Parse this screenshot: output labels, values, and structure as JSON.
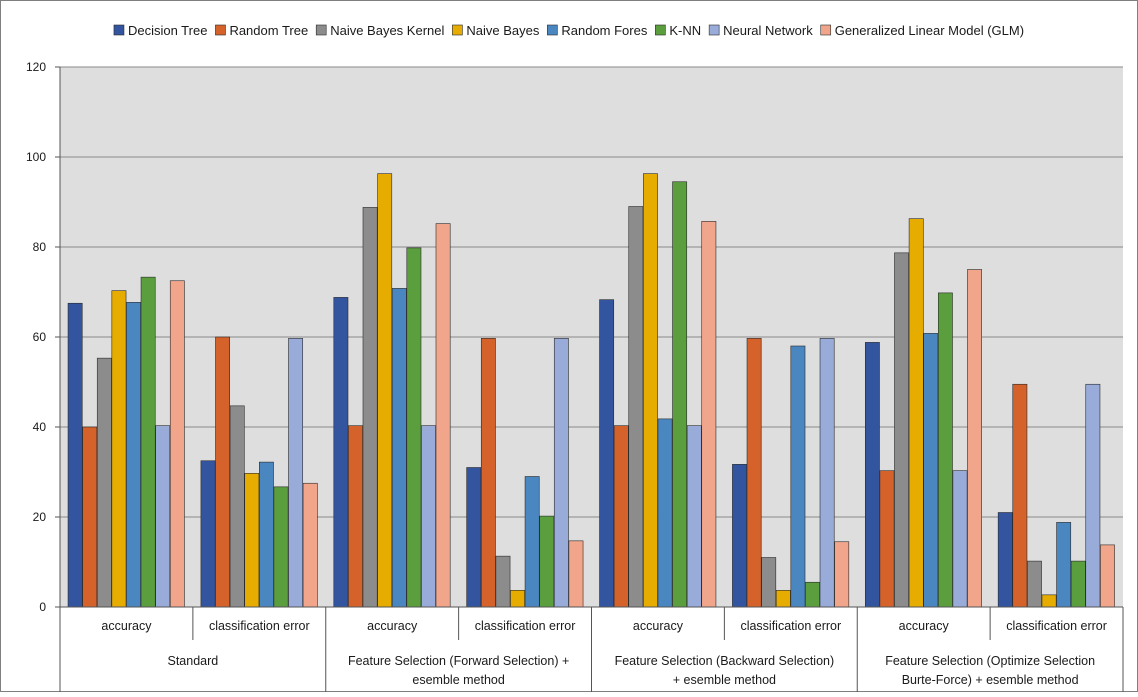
{
  "chart_data": {
    "type": "bar",
    "title": "",
    "xlabel": "",
    "ylabel": "",
    "ylim": [
      0,
      120
    ],
    "yticks": [
      0,
      20,
      40,
      60,
      80,
      100,
      120
    ],
    "grid": true,
    "legend_position": "top",
    "groups": [
      {
        "label": "Standard",
        "subcategories": [
          "accuracy",
          "classification error"
        ]
      },
      {
        "label": "Feature Selection (Forward Selection) + esemble method",
        "label_lines": [
          "Feature Selection (Forward Selection) +",
          "esemble method"
        ],
        "subcategories": [
          "accuracy",
          "classification error"
        ]
      },
      {
        "label": "Feature Selection (Backward Selection) + esemble method",
        "label_lines": [
          "Feature Selection (Backward Selection)",
          "+ esemble method"
        ],
        "subcategories": [
          "accuracy",
          "classification error"
        ]
      },
      {
        "label": "Feature Selection (Optimize Selection Burte-Force) + esemble method",
        "label_lines": [
          "Feature Selection (Optimize Selection",
          "Burte-Force) + esemble method"
        ],
        "subcategories": [
          "accuracy",
          "classification error"
        ]
      }
    ],
    "series": [
      {
        "name": "Decision Tree",
        "color": "#3355a0",
        "values": [
          67.5,
          32.5,
          68.8,
          31.0,
          68.3,
          31.7,
          58.8,
          21.0
        ]
      },
      {
        "name": "Random Tree",
        "color": "#d4622a",
        "values": [
          40.0,
          60.0,
          40.3,
          59.7,
          40.3,
          59.7,
          30.3,
          49.5
        ]
      },
      {
        "name": "Naive Bayes Kernel",
        "color": "#8c8c8c",
        "values": [
          55.3,
          44.7,
          88.8,
          11.3,
          89.0,
          11.0,
          78.7,
          10.2
        ]
      },
      {
        "name": "Naive Bayes",
        "color": "#e6ac00",
        "values": [
          70.3,
          29.7,
          96.3,
          3.7,
          96.3,
          3.7,
          86.3,
          2.7
        ]
      },
      {
        "name": "Random Fores",
        "color": "#4a86c0",
        "values": [
          67.7,
          32.2,
          70.8,
          29.0,
          41.8,
          58.0,
          60.8,
          18.8
        ]
      },
      {
        "name": "K-NN",
        "color": "#5a9e3e",
        "values": [
          73.3,
          26.7,
          79.8,
          20.2,
          94.5,
          5.5,
          69.8,
          10.2
        ]
      },
      {
        "name": "Neural Network",
        "color": "#99abd9",
        "values": [
          40.3,
          59.7,
          40.3,
          59.7,
          40.3,
          59.7,
          30.3,
          49.5
        ]
      },
      {
        "name": "Generalized Linear Model (GLM)",
        "color": "#f1a68c",
        "values": [
          72.5,
          27.5,
          85.2,
          14.7,
          85.7,
          14.5,
          75.0,
          13.8
        ]
      }
    ]
  },
  "colors": {
    "plot_background": "#dedede",
    "gridline": "#8a8a8a",
    "axis_line": "#555555",
    "frame": "#7f7f7f"
  }
}
